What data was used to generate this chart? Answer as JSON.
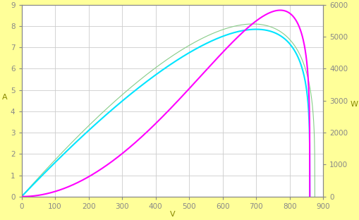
{
  "background_color": "#ffff99",
  "plot_bg_color": "#ffffff",
  "grid_color": "#cccccc",
  "xlim": [
    0,
    900
  ],
  "ylim_left": [
    0,
    9
  ],
  "ylim_right": [
    0,
    6000
  ],
  "xlabel": "V",
  "ylabel_left": "A",
  "ylabel_right": "W",
  "tick_color": "#888888",
  "xticks": [
    0,
    100,
    200,
    300,
    400,
    500,
    600,
    700,
    800,
    900
  ],
  "yticks_left": [
    0,
    1,
    2,
    3,
    4,
    5,
    6,
    7,
    8,
    9
  ],
  "yticks_right": [
    0,
    1000,
    2000,
    3000,
    4000,
    5000,
    6000
  ],
  "iv_color": "#00e5ff",
  "power_color": "#ff00ff",
  "green_color": "#88cc88",
  "Isc": 8.5,
  "Voc": 860,
  "Vmp": 700,
  "Imp": 7.85,
  "green_Voc": 875,
  "green_Imp": 8.1,
  "green_Vmp": 690,
  "figsize": [
    5.1,
    3.12
  ],
  "dpi": 100
}
